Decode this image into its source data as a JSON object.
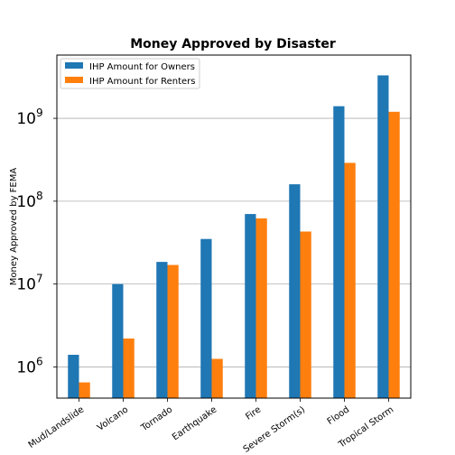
{
  "chart_data": {
    "type": "bar",
    "title": "Money Approved by Disaster",
    "xlabel": "",
    "ylabel": "Money Approved by FEMA",
    "yscale": "log",
    "ylim": [
      420000,
      5800000000
    ],
    "grid": "y-major",
    "legend_position": "top-left",
    "categories": [
      "Mud/Landslide",
      "Volcano",
      "Tornado",
      "Earthquake",
      "Fire",
      "Severe Storm(s)",
      "Flood",
      "Tropical Storm"
    ],
    "series": [
      {
        "name": "IHP Amount for Owners",
        "color": "#1f77b4",
        "values": [
          1400000,
          10000000,
          18500000,
          35000000,
          70000000,
          160000000,
          1400000000,
          3300000000
        ]
      },
      {
        "name": "IHP Amount for Renters",
        "color": "#ff7f0e",
        "values": [
          650000,
          2200000,
          17000000,
          1250000,
          62000000,
          43000000,
          290000000,
          1200000000
        ]
      }
    ],
    "yticks": [
      {
        "value": 1000000,
        "base": "10",
        "exp": "6"
      },
      {
        "value": 10000000,
        "base": "10",
        "exp": "7"
      },
      {
        "value": 100000000,
        "base": "10",
        "exp": "8"
      },
      {
        "value": 1000000000,
        "base": "10",
        "exp": "9"
      }
    ]
  }
}
